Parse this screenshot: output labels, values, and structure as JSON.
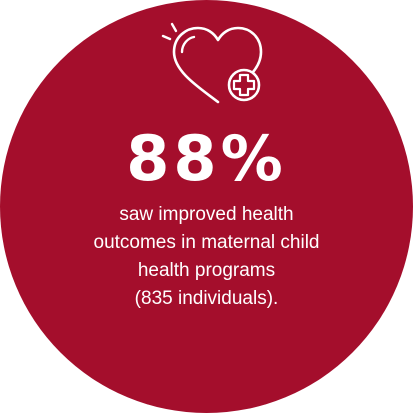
{
  "infographic": {
    "icon": "heart-plus-icon",
    "background_color": "#a40e2c",
    "text_color": "#ffffff",
    "stat": "88%",
    "description_lines": [
      "saw improved health",
      "outcomes in maternal child",
      "health programs",
      "(835 individuals)."
    ]
  }
}
